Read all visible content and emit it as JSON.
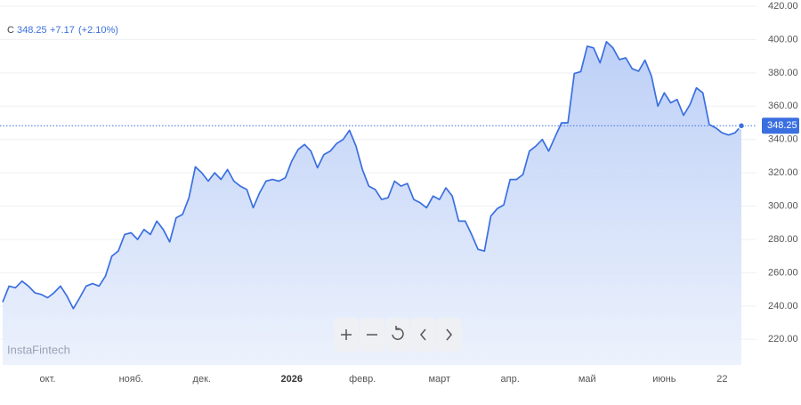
{
  "quote": {
    "symbol": "C",
    "price": "348.25",
    "change": "+7.17",
    "change_pct": "(+2.10%)"
  },
  "watermark": "InstaFintech",
  "chart_data": {
    "type": "line",
    "categories": [
      null,
      null,
      null,
      null,
      null,
      null,
      null,
      "окт.",
      null,
      null,
      null,
      null,
      null,
      null,
      null,
      null,
      null,
      null,
      null,
      null,
      "нояб.",
      null,
      null,
      null,
      null,
      null,
      null,
      null,
      null,
      null,
      null,
      "дек.",
      null,
      null,
      null,
      null,
      null,
      null,
      null,
      null,
      null,
      null,
      null,
      null,
      null,
      "2026",
      null,
      null,
      null,
      null,
      null,
      null,
      null,
      null,
      null,
      null,
      "февр.",
      null,
      null,
      null,
      null,
      null,
      null,
      null,
      null,
      null,
      null,
      null,
      "март",
      null,
      null,
      null,
      null,
      null,
      null,
      null,
      null,
      null,
      null,
      "апр.",
      null,
      null,
      null,
      null,
      null,
      null,
      null,
      null,
      null,
      null,
      null,
      "май",
      null,
      null,
      null,
      null,
      null,
      null,
      null,
      null,
      null,
      null,
      null,
      "июнь",
      null,
      null,
      null,
      null,
      null,
      null,
      null,
      null,
      "22",
      null,
      null,
      null
    ],
    "values": [
      242.4,
      252,
      251,
      255,
      252,
      248,
      247,
      245,
      248,
      252,
      246,
      238.5,
      245,
      252,
      253.5,
      252,
      258,
      270,
      273,
      283,
      284,
      280,
      286,
      283,
      291,
      286,
      278.5,
      293,
      295,
      305,
      323.6,
      320,
      315,
      320,
      316,
      322,
      315,
      312,
      310,
      299,
      308,
      315,
      316,
      315,
      317,
      327,
      334,
      337,
      333,
      323,
      331,
      333,
      337.6,
      340,
      345.5,
      336,
      322,
      312,
      310,
      304,
      305,
      315,
      312,
      313.6,
      304,
      302,
      299,
      306,
      304,
      311,
      306,
      291,
      291,
      283,
      274,
      273,
      294,
      298.5,
      300.7,
      316,
      316,
      319,
      333,
      336,
      340,
      333,
      341.6,
      350,
      350,
      379.6,
      380.8,
      396,
      395,
      386,
      398.7,
      395,
      388,
      389,
      382.5,
      381,
      387.6,
      378,
      360,
      368,
      362,
      364,
      354.5,
      361,
      371,
      368,
      349,
      347,
      344,
      342.7,
      344,
      348.25
    ],
    "color": "#3a6fe0",
    "ylim": [
      210,
      420
    ],
    "yticks": [
      {
        "value": 220,
        "label": "220.00"
      },
      {
        "value": 240,
        "label": "240.00"
      },
      {
        "value": 260,
        "label": "260.00"
      },
      {
        "value": 280,
        "label": "280.00"
      },
      {
        "value": 300,
        "label": "300.00"
      },
      {
        "value": 320,
        "label": "320.00"
      },
      {
        "value": 340,
        "label": "340.00"
      },
      {
        "value": 360,
        "label": "360.00"
      },
      {
        "value": 380,
        "label": "380.00"
      },
      {
        "value": 400,
        "label": "400.00"
      },
      {
        "value": 420,
        "label": "420.00"
      }
    ],
    "grid": true
  }
}
